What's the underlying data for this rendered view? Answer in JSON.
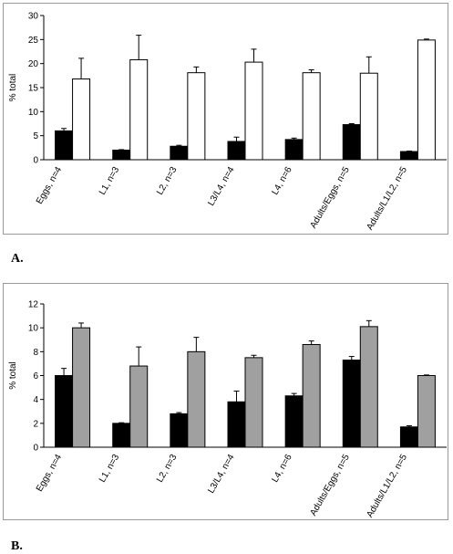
{
  "panels": [
    {
      "id": "a",
      "letter": "A."
    },
    {
      "id": "b",
      "letter": "B."
    }
  ],
  "chart_data": [
    {
      "type": "bar",
      "title": "",
      "xlabel": "",
      "ylabel": "% total",
      "ylim": [
        0,
        30
      ],
      "yticks": [
        0,
        5,
        10,
        15,
        20,
        25,
        30
      ],
      "grid": false,
      "categories": [
        "Eggs, n=4",
        "L1, n=3",
        "L2, n=3",
        "L3/L4, n=4",
        "L4, n=6",
        "Adults/Eggs, n=5",
        "Adults/L1/L2, n=5"
      ],
      "series": [
        {
          "fill": "#000000",
          "values": [
            6.0,
            2.0,
            2.8,
            3.8,
            4.2,
            7.3,
            1.7
          ],
          "errors": [
            0.5,
            0.1,
            0.2,
            0.9,
            0.3,
            0.2,
            0.1
          ]
        },
        {
          "fill": "#ffffff",
          "values": [
            16.8,
            20.8,
            18.1,
            20.3,
            18.1,
            18.0,
            24.9
          ],
          "errors": [
            4.3,
            5.1,
            1.2,
            2.7,
            0.6,
            3.4,
            0.2
          ]
        }
      ]
    },
    {
      "type": "bar",
      "title": "",
      "xlabel": "",
      "ylabel": "% total",
      "ylim": [
        0,
        12
      ],
      "yticks": [
        0,
        2,
        4,
        6,
        8,
        10,
        12
      ],
      "grid": false,
      "categories": [
        "Eggs, n=4",
        "L1, n=3",
        "L2, n=3",
        "L3/L4, n=4",
        "L4, n=6",
        "Adults/Eggs, n=5",
        "Adults/L1/L2, n=5"
      ],
      "series": [
        {
          "fill": "#000000",
          "values": [
            6.0,
            2.0,
            2.8,
            3.8,
            4.3,
            7.3,
            1.7
          ],
          "errors": [
            0.6,
            0.05,
            0.1,
            0.9,
            0.2,
            0.3,
            0.1
          ]
        },
        {
          "fill": "#a0a0a0",
          "values": [
            10.0,
            6.8,
            8.0,
            7.5,
            8.6,
            10.1,
            6.0
          ],
          "errors": [
            0.4,
            1.6,
            1.2,
            0.2,
            0.3,
            0.5,
            0.05
          ]
        }
      ]
    }
  ]
}
